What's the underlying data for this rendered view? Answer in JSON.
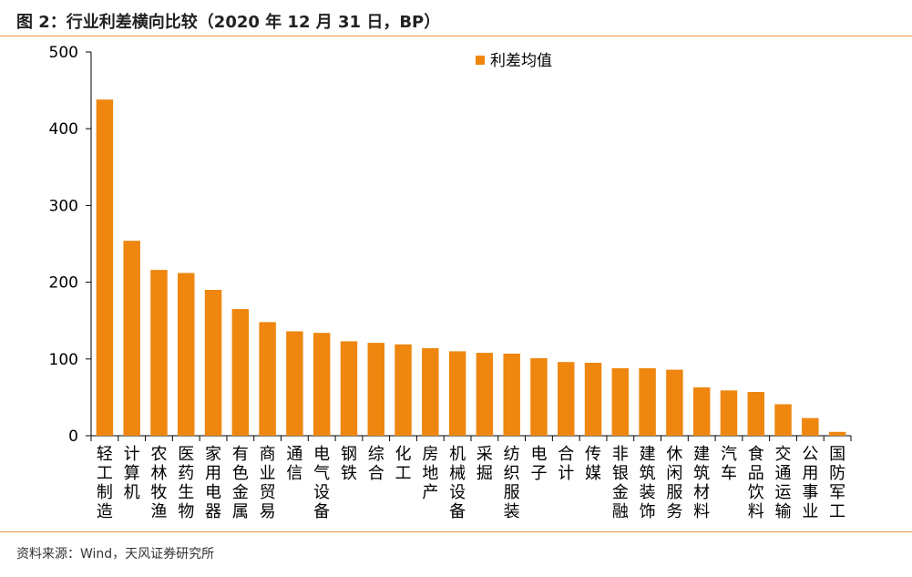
{
  "figure_title": "图 2：行业利差横向比较（2020 年 12 月 31 日，BP）",
  "source_note": "资料来源：Wind，天风证券研究所",
  "colors": {
    "bar": "#EE860F",
    "accent_rule": "#E8923A",
    "axis": "#000000"
  },
  "chart_data": {
    "type": "bar",
    "title": "",
    "xlabel": "",
    "ylabel": "",
    "ylim": [
      0,
      500
    ],
    "yticks": [
      0,
      100,
      200,
      300,
      400,
      500
    ],
    "legend_placement": "top-center",
    "grid": false,
    "categories": [
      "轻工制造",
      "计算机",
      "农林牧渔",
      "医药生物",
      "家用电器",
      "有色金属",
      "商业贸易",
      "通信",
      "电气设备",
      "钢铁",
      "综合",
      "化工",
      "房地产",
      "机械设备",
      "采掘",
      "纺织服装",
      "电子",
      "合计",
      "传媒",
      "非银金融",
      "建筑装饰",
      "休闲服务",
      "建筑材料",
      "汽车",
      "食品饮料",
      "交通运输",
      "公用事业",
      "国防军工"
    ],
    "series": [
      {
        "name": "利差均值",
        "values": [
          438,
          254,
          216,
          212,
          190,
          165,
          148,
          136,
          134,
          123,
          121,
          119,
          114,
          110,
          108,
          107,
          101,
          96,
          95,
          88,
          88,
          86,
          63,
          59,
          57,
          41,
          23,
          5
        ]
      }
    ]
  }
}
